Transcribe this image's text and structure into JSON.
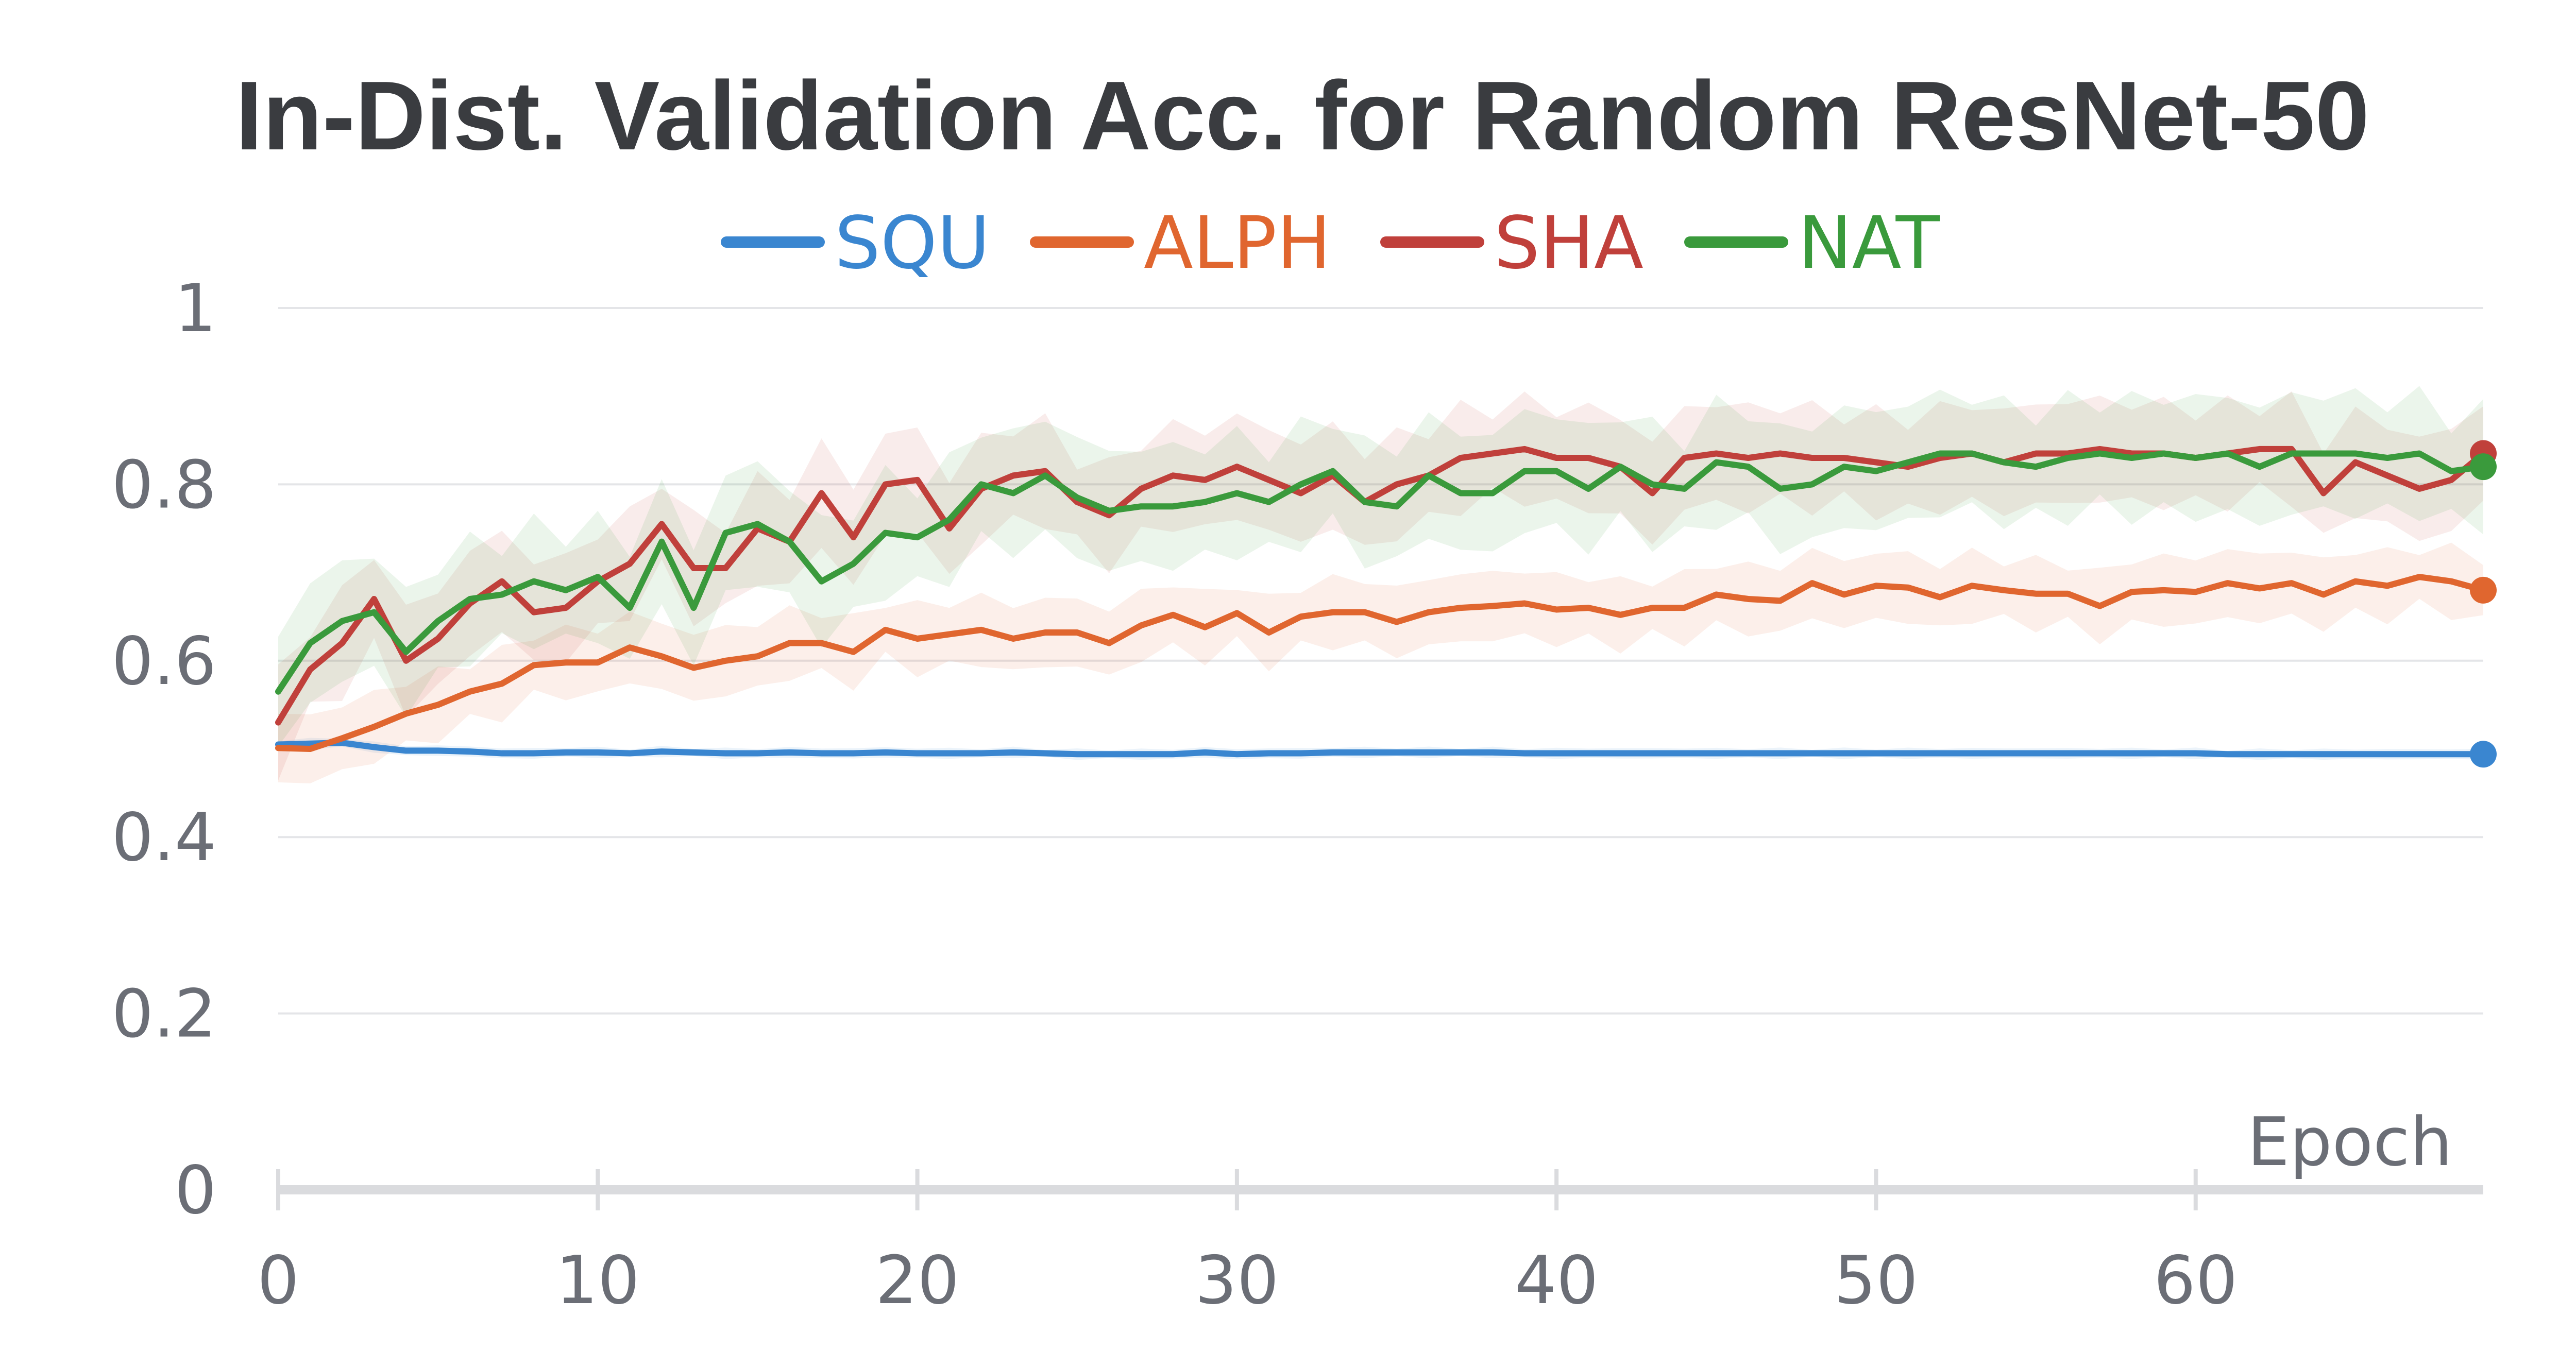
{
  "chart_data": {
    "type": "line",
    "title": "In-Dist. Validation Acc. for Random ResNet-50",
    "xlabel": "Epoch",
    "ylabel": "",
    "xlim": [
      0,
      69
    ],
    "ylim": [
      0,
      1
    ],
    "x_ticks": [
      0,
      10,
      20,
      30,
      40,
      50,
      60
    ],
    "y_ticks": [
      0,
      0.2,
      0.4,
      0.6,
      0.8,
      1
    ],
    "y_tick_labels": [
      "0",
      "0.2",
      "0.4",
      "0.6",
      "0.8",
      "1"
    ],
    "grid": true,
    "legend_position": "top-center",
    "series": [
      {
        "name": "SQU",
        "color": "#3a86d0",
        "values": [
          0.505,
          0.506,
          0.507,
          0.502,
          0.498,
          0.498,
          0.497,
          0.495,
          0.495,
          0.496,
          0.496,
          0.495,
          0.497,
          0.496,
          0.495,
          0.495,
          0.496,
          0.495,
          0.495,
          0.496,
          0.495,
          0.495,
          0.495,
          0.496,
          0.495,
          0.494,
          0.494,
          0.494,
          0.494,
          0.496,
          0.494,
          0.495,
          0.495,
          0.496,
          0.496,
          0.496,
          0.496,
          0.496,
          0.496,
          0.495,
          0.495,
          0.495,
          0.495,
          0.495,
          0.495,
          0.495,
          0.495,
          0.495,
          0.495,
          0.495,
          0.495,
          0.495,
          0.495,
          0.495,
          0.495,
          0.495,
          0.495,
          0.495,
          0.495,
          0.495,
          0.495,
          0.494,
          0.494,
          0.494,
          0.494,
          0.494,
          0.494,
          0.494,
          0.494,
          0.494
        ],
        "band": 0.006
      },
      {
        "name": "ALPH",
        "color": "#e0662f",
        "values": [
          0.501,
          0.5,
          0.512,
          0.525,
          0.54,
          0.55,
          0.565,
          0.574,
          0.595,
          0.598,
          0.598,
          0.615,
          0.605,
          0.592,
          0.6,
          0.605,
          0.62,
          0.62,
          0.61,
          0.635,
          0.625,
          0.63,
          0.635,
          0.625,
          0.632,
          0.632,
          0.62,
          0.64,
          0.652,
          0.638,
          0.654,
          0.632,
          0.65,
          0.655,
          0.655,
          0.644,
          0.655,
          0.66,
          0.662,
          0.665,
          0.658,
          0.66,
          0.652,
          0.66,
          0.66,
          0.675,
          0.67,
          0.668,
          0.688,
          0.675,
          0.685,
          0.683,
          0.672,
          0.685,
          0.68,
          0.676,
          0.676,
          0.662,
          0.678,
          0.68,
          0.678,
          0.688,
          0.682,
          0.688,
          0.675,
          0.69,
          0.685,
          0.695,
          0.69,
          0.68
        ],
        "band": 0.04
      },
      {
        "name": "SHA",
        "color": "#c0403b",
        "values": [
          0.53,
          0.59,
          0.62,
          0.67,
          0.6,
          0.625,
          0.665,
          0.69,
          0.655,
          0.66,
          0.69,
          0.71,
          0.755,
          0.705,
          0.705,
          0.75,
          0.735,
          0.79,
          0.74,
          0.8,
          0.805,
          0.75,
          0.795,
          0.81,
          0.815,
          0.78,
          0.765,
          0.795,
          0.81,
          0.805,
          0.82,
          0.805,
          0.79,
          0.81,
          0.78,
          0.8,
          0.81,
          0.83,
          0.835,
          0.84,
          0.83,
          0.83,
          0.82,
          0.79,
          0.83,
          0.835,
          0.83,
          0.835,
          0.83,
          0.83,
          0.825,
          0.82,
          0.83,
          0.835,
          0.825,
          0.835,
          0.835,
          0.84,
          0.835,
          0.835,
          0.83,
          0.835,
          0.84,
          0.84,
          0.79,
          0.825,
          0.81,
          0.795,
          0.805,
          0.835
        ],
        "band": 0.06
      },
      {
        "name": "NAT",
        "color": "#3a9a3c",
        "values": [
          0.565,
          0.62,
          0.645,
          0.655,
          0.61,
          0.645,
          0.67,
          0.675,
          0.69,
          0.68,
          0.695,
          0.66,
          0.735,
          0.66,
          0.745,
          0.755,
          0.735,
          0.69,
          0.71,
          0.745,
          0.74,
          0.76,
          0.8,
          0.79,
          0.81,
          0.785,
          0.77,
          0.775,
          0.775,
          0.78,
          0.79,
          0.78,
          0.8,
          0.815,
          0.78,
          0.775,
          0.81,
          0.79,
          0.79,
          0.815,
          0.815,
          0.795,
          0.82,
          0.8,
          0.795,
          0.825,
          0.82,
          0.795,
          0.8,
          0.82,
          0.815,
          0.825,
          0.835,
          0.835,
          0.825,
          0.82,
          0.83,
          0.835,
          0.83,
          0.835,
          0.83,
          0.835,
          0.82,
          0.835,
          0.835,
          0.835,
          0.83,
          0.835,
          0.815,
          0.82
        ],
        "band": 0.07
      }
    ]
  }
}
